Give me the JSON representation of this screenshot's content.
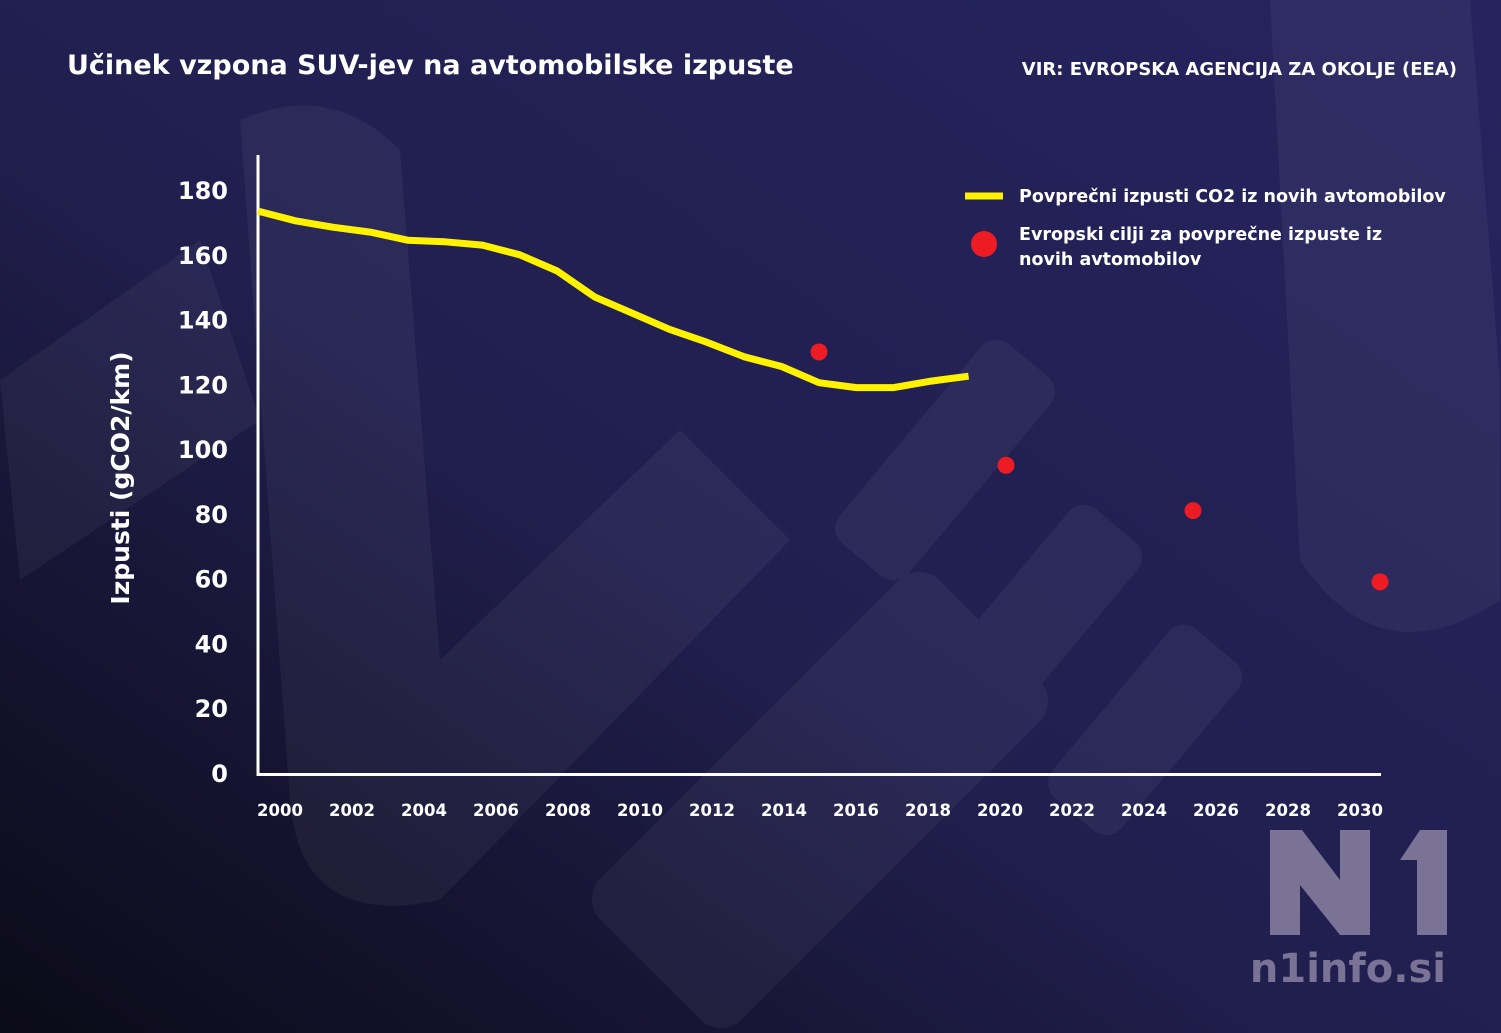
{
  "title": "Učinek vzpona SUV-jev na avtomobilske izpuste",
  "source": "VIR: EVROPSKA AGENCIJA ZA OKOLJE (EEA)",
  "watermark": {
    "logo": "N1",
    "site": "n1info.si"
  },
  "colors": {
    "background_top": "#25225e",
    "background_bottom": "#0d0c1c",
    "line": "#fff200",
    "target": "#ed1c24",
    "axis": "#ffffff"
  },
  "chart_data": {
    "type": "line",
    "title": "Učinek vzpona SUV-jev na avtomobilske izpuste",
    "xlabel": "",
    "ylabel": "Izpusti (gCO2/km)",
    "xlim": [
      2000,
      2030
    ],
    "ylim": [
      0,
      180
    ],
    "grid": false,
    "legend_position": "top-right",
    "x_tick_labels": [
      "2000",
      "2002",
      "2004",
      "2006",
      "2008",
      "2010",
      "2012",
      "2014",
      "2016",
      "2018",
      "2020",
      "2022",
      "2024",
      "2026",
      "2028",
      "2030"
    ],
    "y_tick_labels": [
      "0",
      "20",
      "40",
      "60",
      "80",
      "100",
      "120",
      "140",
      "160",
      "180"
    ],
    "series": [
      {
        "name": "Povprečni izpusti CO2 iz novih avtomobilov",
        "type": "line",
        "x": [
          2000,
          2001,
          2002,
          2003,
          2004,
          2005,
          2006,
          2007,
          2008,
          2009,
          2010,
          2011,
          2012,
          2013,
          2014,
          2015,
          2016,
          2017,
          2018,
          2019
        ],
        "y": [
          173.5,
          170.5,
          168.5,
          167,
          164.5,
          164,
          163,
          160,
          155,
          147,
          142,
          137,
          133,
          128.5,
          125.5,
          120.5,
          119,
          119,
          121,
          122.5
        ]
      },
      {
        "name_lines": [
          "Evropski cilji za povprečne izpuste iz",
          "novih avtomobilov"
        ],
        "type": "scatter",
        "x": [
          2015,
          2020,
          2025,
          2030
        ],
        "y": [
          130,
          95,
          81,
          59
        ]
      }
    ]
  }
}
